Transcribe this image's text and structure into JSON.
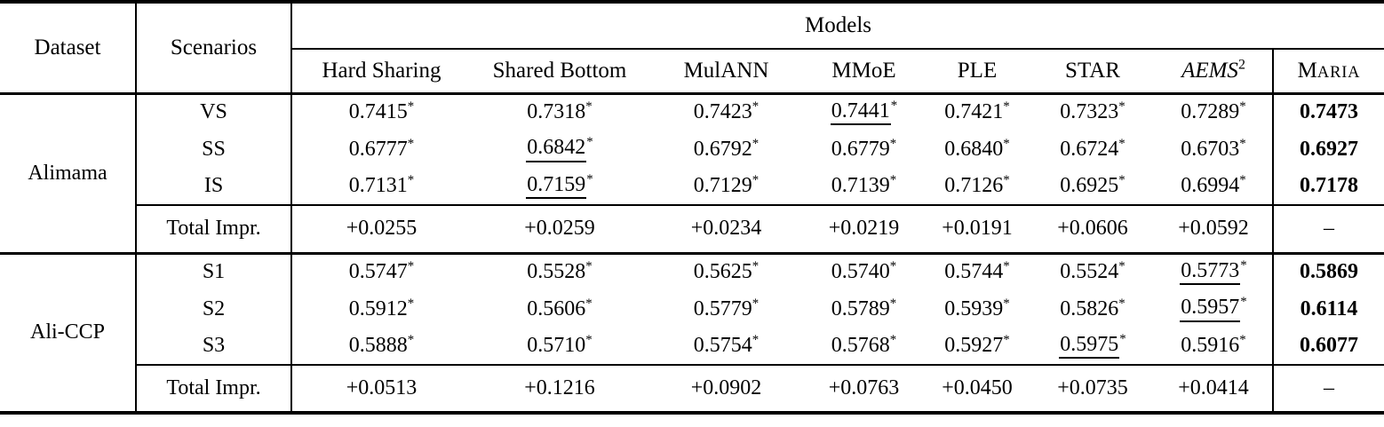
{
  "table": {
    "header": {
      "dataset": "Dataset",
      "scenarios": "Scenarios",
      "models_group": "Models",
      "columns": [
        {
          "label": "Hard Sharing"
        },
        {
          "label": "Shared Bottom"
        },
        {
          "label": "MulANN"
        },
        {
          "label": "MMoE"
        },
        {
          "label": "PLE"
        },
        {
          "label": "STAR"
        },
        {
          "label": "AEMS",
          "superscript": "2",
          "italic": true
        },
        {
          "label": "Maria",
          "smallcaps": true
        }
      ]
    },
    "footnote_symbol": "*",
    "sections": [
      {
        "dataset": "Alimama",
        "rows": [
          {
            "scenario": "VS",
            "cells": [
              {
                "v": "0.7415",
                "star": true
              },
              {
                "v": "0.7318",
                "star": true
              },
              {
                "v": "0.7423",
                "star": true
              },
              {
                "v": "0.7441",
                "star": true,
                "underline": true
              },
              {
                "v": "0.7421",
                "star": true
              },
              {
                "v": "0.7323",
                "star": true
              },
              {
                "v": "0.7289",
                "star": true
              },
              {
                "v": "0.7473",
                "bold": true
              }
            ]
          },
          {
            "scenario": "SS",
            "cells": [
              {
                "v": "0.6777",
                "star": true
              },
              {
                "v": "0.6842",
                "star": true,
                "underline": true
              },
              {
                "v": "0.6792",
                "star": true
              },
              {
                "v": "0.6779",
                "star": true
              },
              {
                "v": "0.6840",
                "star": true
              },
              {
                "v": "0.6724",
                "star": true
              },
              {
                "v": "0.6703",
                "star": true
              },
              {
                "v": "0.6927",
                "bold": true
              }
            ]
          },
          {
            "scenario": "IS",
            "cells": [
              {
                "v": "0.7131",
                "star": true
              },
              {
                "v": "0.7159",
                "star": true,
                "underline": true
              },
              {
                "v": "0.7129",
                "star": true
              },
              {
                "v": "0.7139",
                "star": true
              },
              {
                "v": "0.7126",
                "star": true
              },
              {
                "v": "0.6925",
                "star": true
              },
              {
                "v": "0.6994",
                "star": true
              },
              {
                "v": "0.7178",
                "bold": true
              }
            ]
          }
        ],
        "total": {
          "label": "Total Impr.",
          "cells": [
            "+0.0255",
            "+0.0259",
            "+0.0234",
            "+0.0219",
            "+0.0191",
            "+0.0606",
            "+0.0592",
            "–"
          ]
        }
      },
      {
        "dataset": "Ali-CCP",
        "rows": [
          {
            "scenario": "S1",
            "cells": [
              {
                "v": "0.5747",
                "star": true
              },
              {
                "v": "0.5528",
                "star": true
              },
              {
                "v": "0.5625",
                "star": true
              },
              {
                "v": "0.5740",
                "star": true
              },
              {
                "v": "0.5744",
                "star": true
              },
              {
                "v": "0.5524",
                "star": true
              },
              {
                "v": "0.5773",
                "star": true,
                "underline": true
              },
              {
                "v": "0.5869",
                "bold": true
              }
            ]
          },
          {
            "scenario": "S2",
            "cells": [
              {
                "v": "0.5912",
                "star": true
              },
              {
                "v": "0.5606",
                "star": true
              },
              {
                "v": "0.5779",
                "star": true
              },
              {
                "v": "0.5789",
                "star": true
              },
              {
                "v": "0.5939",
                "star": true
              },
              {
                "v": "0.5826",
                "star": true
              },
              {
                "v": "0.5957",
                "star": true,
                "underline": true
              },
              {
                "v": "0.6114",
                "bold": true
              }
            ]
          },
          {
            "scenario": "S3",
            "cells": [
              {
                "v": "0.5888",
                "star": true
              },
              {
                "v": "0.5710",
                "star": true
              },
              {
                "v": "0.5754",
                "star": true
              },
              {
                "v": "0.5768",
                "star": true
              },
              {
                "v": "0.5927",
                "star": true
              },
              {
                "v": "0.5975",
                "star": true,
                "underline": true
              },
              {
                "v": "0.5916",
                "star": true
              },
              {
                "v": "0.6077",
                "bold": true
              }
            ]
          }
        ],
        "total": {
          "label": "Total Impr.",
          "cells": [
            "+0.0513",
            "+0.1216",
            "+0.0902",
            "+0.0763",
            "+0.0450",
            "+0.0735",
            "+0.0414",
            "–"
          ]
        }
      }
    ]
  }
}
